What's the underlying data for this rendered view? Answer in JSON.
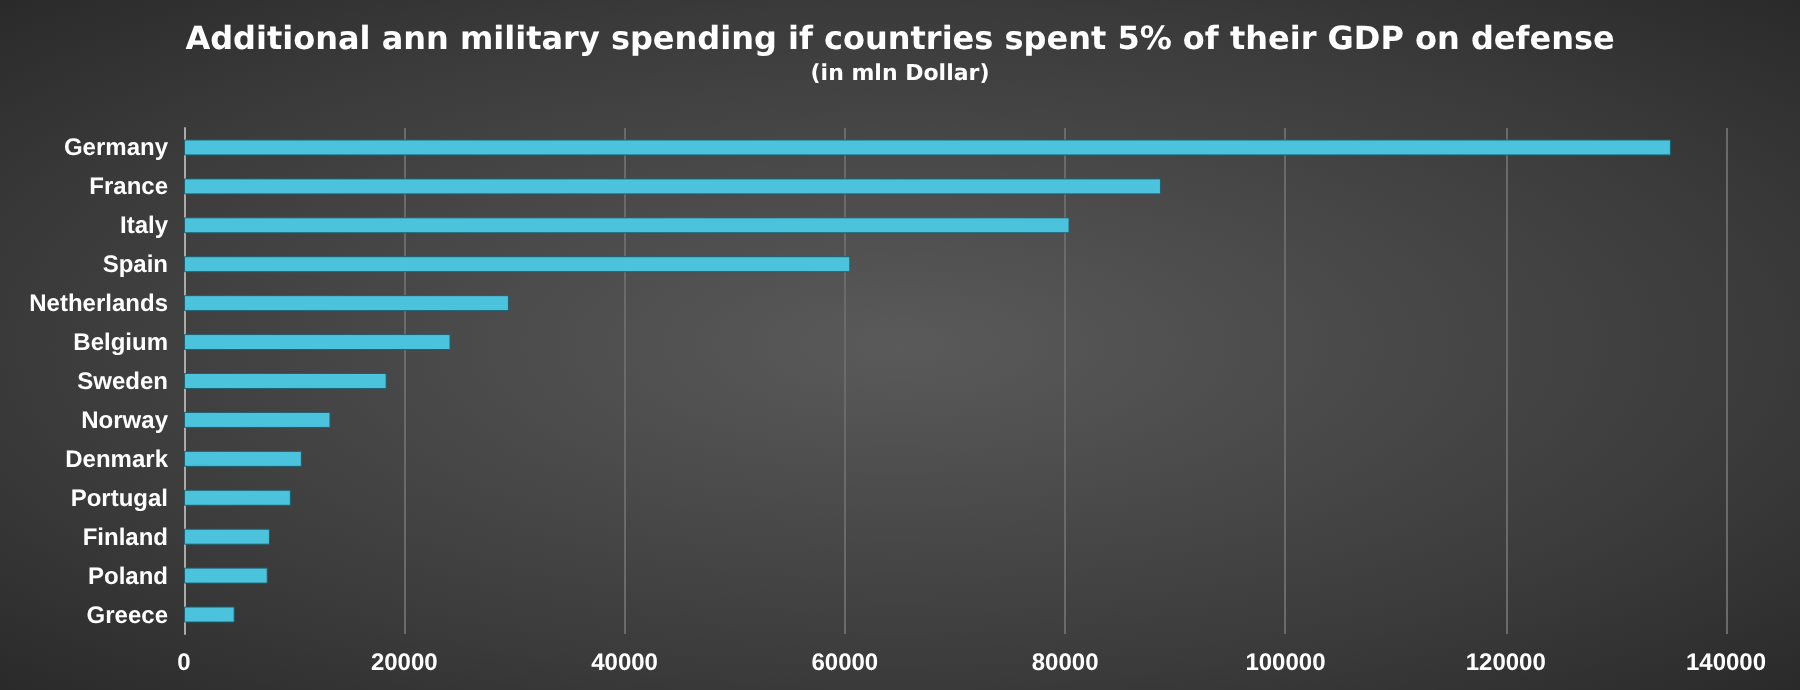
{
  "chart_data": {
    "type": "bar",
    "orientation": "horizontal",
    "title": "Additional ann military spending if countries spent 5% of their GDP on defense",
    "subtitle": "(in mln Dollar)",
    "categories": [
      "Germany",
      "France",
      "Italy",
      "Spain",
      "Netherlands",
      "Belgium",
      "Sweden",
      "Norway",
      "Denmark",
      "Portugal",
      "Finland",
      "Poland",
      "Greece"
    ],
    "values": [
      135000,
      88700,
      80400,
      60500,
      29500,
      24200,
      18400,
      13300,
      10700,
      9700,
      7800,
      7600,
      4600
    ],
    "color": "#4cc3dc",
    "xlim": [
      0,
      140000
    ],
    "xticks": [
      0,
      20000,
      40000,
      60000,
      80000,
      100000,
      120000,
      140000
    ],
    "grid": "x"
  }
}
